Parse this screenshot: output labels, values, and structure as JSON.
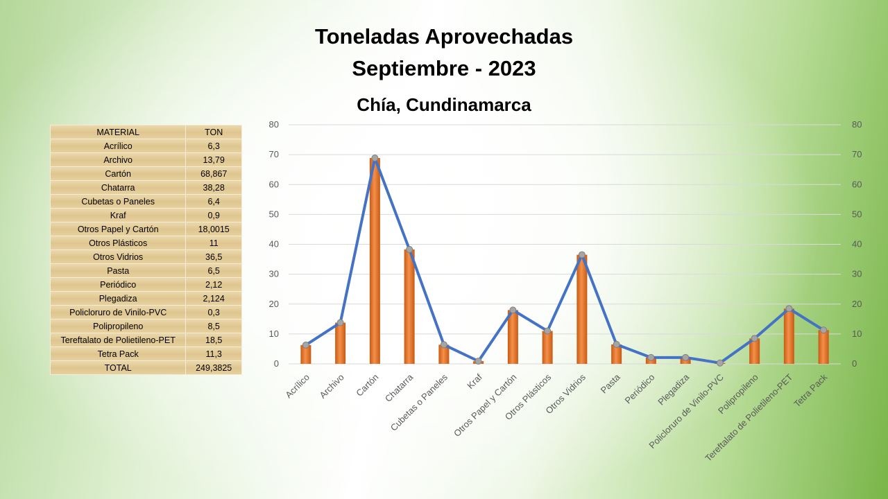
{
  "header": {
    "title_line1": "Toneladas Aprovechadas",
    "title_line2": "Septiembre - 2023",
    "subtitle": "Chía, Cundinamarca"
  },
  "table": {
    "col_material": "MATERIAL",
    "col_ton": "TON",
    "rows": [
      {
        "material": "Acrílico",
        "ton": "6,3"
      },
      {
        "material": "Archivo",
        "ton": "13,79"
      },
      {
        "material": "Cartón",
        "ton": "68,867"
      },
      {
        "material": "Chatarra",
        "ton": "38,28"
      },
      {
        "material": "Cubetas o Paneles",
        "ton": "6,4"
      },
      {
        "material": "Kraf",
        "ton": "0,9"
      },
      {
        "material": "Otros Papel y Cartón",
        "ton": "18,0015"
      },
      {
        "material": "Otros Plásticos",
        "ton": "11"
      },
      {
        "material": "Otros Vidrios",
        "ton": "36,5"
      },
      {
        "material": "Pasta",
        "ton": "6,5"
      },
      {
        "material": "Periódico",
        "ton": "2,12"
      },
      {
        "material": "Plegadiza",
        "ton": "2,124"
      },
      {
        "material": "Policloruro de Vinilo-PVC",
        "ton": "0,3"
      },
      {
        "material": "Polipropileno",
        "ton": "8,5"
      },
      {
        "material": "Tereftalato de Polietileno-PET",
        "ton": "18,5"
      },
      {
        "material": "Tetra Pack",
        "ton": "11,3"
      }
    ],
    "total_label": "TOTAL",
    "total_value": "249,3825"
  },
  "chart_data": {
    "type": "bar",
    "overlay": "line",
    "categories": [
      "Acrílico",
      "Archivo",
      "Cartón",
      "Chatarra",
      "Cubetas o Paneles",
      "Kraf",
      "Otros Papel y Cartón",
      "Otros Plásticos",
      "Otros Vidrios",
      "Pasta",
      "Periódico",
      "Plegadiza",
      "Policloruro de Vinilo-PVC",
      "Polipropileno",
      "Tereftalato de Polietileno-PET",
      "Tetra Pack"
    ],
    "values": [
      6.3,
      13.79,
      68.867,
      38.28,
      6.4,
      0.9,
      18.0015,
      11,
      36.5,
      6.5,
      2.12,
      2.124,
      0.3,
      8.5,
      18.5,
      11.3
    ],
    "ylim": [
      0,
      80
    ],
    "yticks": [
      0,
      10,
      20,
      30,
      40,
      50,
      60,
      70,
      80
    ],
    "secondary_yticks": [
      0,
      10,
      20,
      30,
      40,
      50,
      60,
      70,
      80
    ],
    "grid": true,
    "bar_color": "#ed7d31",
    "line_color": "#4472c4",
    "marker_color": "#a5a5a5"
  }
}
